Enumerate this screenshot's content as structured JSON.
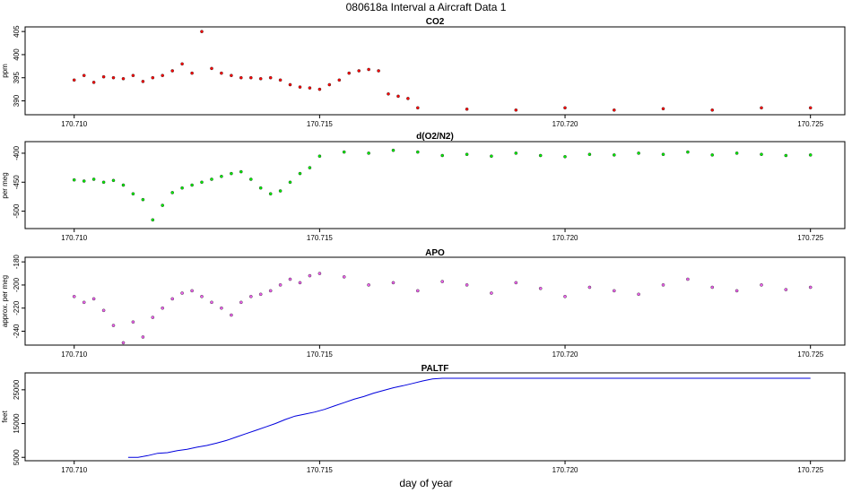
{
  "figure_title": "080618a   Interval a Aircraft Data 1",
  "x_axis_title": "day of year",
  "x_tick_labels": [
    "170.710",
    "170.715",
    "170.720",
    "170.725"
  ],
  "chart_data": [
    {
      "type": "scatter",
      "title": "CO2",
      "ylabel": "ppm",
      "color": "#ff0000",
      "xlim": [
        170.709,
        170.7257
      ],
      "ylim": [
        387,
        406
      ],
      "y_ticks": [
        390,
        395,
        400,
        405
      ],
      "y_tick_labels": [
        "390",
        "395",
        "400",
        "405"
      ],
      "points": [
        [
          170.71,
          394.5
        ],
        [
          170.7102,
          395.5
        ],
        [
          170.7104,
          394.0
        ],
        [
          170.7106,
          395.2
        ],
        [
          170.7108,
          395.0
        ],
        [
          170.711,
          394.8
        ],
        [
          170.7112,
          395.5
        ],
        [
          170.7114,
          394.2
        ],
        [
          170.7116,
          395.0
        ],
        [
          170.7118,
          395.5
        ],
        [
          170.712,
          396.5
        ],
        [
          170.7122,
          398.0
        ],
        [
          170.7124,
          396.0
        ],
        [
          170.7126,
          405.0
        ],
        [
          170.7128,
          397.0
        ],
        [
          170.713,
          396.0
        ],
        [
          170.7132,
          395.5
        ],
        [
          170.7134,
          395.0
        ],
        [
          170.7136,
          395.0
        ],
        [
          170.7138,
          394.8
        ],
        [
          170.714,
          395.0
        ],
        [
          170.7142,
          394.5
        ],
        [
          170.7144,
          393.5
        ],
        [
          170.7146,
          393.0
        ],
        [
          170.7148,
          392.8
        ],
        [
          170.715,
          392.5
        ],
        [
          170.7152,
          393.5
        ],
        [
          170.7154,
          394.5
        ],
        [
          170.7156,
          396.0
        ],
        [
          170.7158,
          396.5
        ],
        [
          170.716,
          396.8
        ],
        [
          170.7162,
          396.5
        ],
        [
          170.7164,
          391.5
        ],
        [
          170.7166,
          391.0
        ],
        [
          170.7168,
          390.5
        ],
        [
          170.717,
          388.5
        ],
        [
          170.718,
          388.2
        ],
        [
          170.719,
          388.0
        ],
        [
          170.72,
          388.5
        ],
        [
          170.721,
          388.0
        ],
        [
          170.722,
          388.3
        ],
        [
          170.723,
          388.0
        ],
        [
          170.724,
          388.5
        ],
        [
          170.725,
          388.5
        ]
      ]
    },
    {
      "type": "scatter",
      "title": "d(O2/N2)",
      "ylabel": "per meg",
      "color": "#00ee00",
      "xlim": [
        170.709,
        170.7257
      ],
      "ylim": [
        -530,
        -380
      ],
      "y_ticks": [
        -500,
        -450,
        -400
      ],
      "y_tick_labels": [
        "-500",
        "-450",
        "-400"
      ],
      "points": [
        [
          170.71,
          -446
        ],
        [
          170.7102,
          -448
        ],
        [
          170.7104,
          -445
        ],
        [
          170.7106,
          -450
        ],
        [
          170.7108,
          -447
        ],
        [
          170.711,
          -455
        ],
        [
          170.7112,
          -470
        ],
        [
          170.7114,
          -480
        ],
        [
          170.7116,
          -515
        ],
        [
          170.7118,
          -490
        ],
        [
          170.712,
          -468
        ],
        [
          170.7122,
          -460
        ],
        [
          170.7124,
          -455
        ],
        [
          170.7126,
          -450
        ],
        [
          170.7128,
          -445
        ],
        [
          170.713,
          -440
        ],
        [
          170.7132,
          -435
        ],
        [
          170.7134,
          -432
        ],
        [
          170.7136,
          -445
        ],
        [
          170.7138,
          -460
        ],
        [
          170.714,
          -470
        ],
        [
          170.7142,
          -465
        ],
        [
          170.7144,
          -450
        ],
        [
          170.7146,
          -435
        ],
        [
          170.7148,
          -425
        ],
        [
          170.715,
          -405
        ],
        [
          170.7155,
          -398
        ],
        [
          170.716,
          -400
        ],
        [
          170.7165,
          -395
        ],
        [
          170.717,
          -398
        ],
        [
          170.7175,
          -404
        ],
        [
          170.718,
          -402
        ],
        [
          170.7185,
          -405
        ],
        [
          170.719,
          -400
        ],
        [
          170.7195,
          -404
        ],
        [
          170.72,
          -406
        ],
        [
          170.7205,
          -402
        ],
        [
          170.721,
          -403
        ],
        [
          170.7215,
          -400
        ],
        [
          170.722,
          -402
        ],
        [
          170.7225,
          -398
        ],
        [
          170.723,
          -403
        ],
        [
          170.7235,
          -400
        ],
        [
          170.724,
          -402
        ],
        [
          170.7245,
          -404
        ],
        [
          170.725,
          -403
        ]
      ]
    },
    {
      "type": "scatter",
      "title": "APO",
      "ylabel": "approx. per meg",
      "color": "#ee60ee",
      "xlim": [
        170.709,
        170.7257
      ],
      "ylim": [
        -252,
        -176
      ],
      "y_ticks": [
        -240,
        -220,
        -200,
        -180
      ],
      "y_tick_labels": [
        "-240",
        "-220",
        "-200",
        "-180"
      ],
      "points": [
        [
          170.71,
          -210
        ],
        [
          170.7102,
          -215
        ],
        [
          170.7104,
          -212
        ],
        [
          170.7106,
          -222
        ],
        [
          170.7108,
          -235
        ],
        [
          170.711,
          -250
        ],
        [
          170.7112,
          -232
        ],
        [
          170.7114,
          -245
        ],
        [
          170.7116,
          -228
        ],
        [
          170.7118,
          -220
        ],
        [
          170.712,
          -212
        ],
        [
          170.7122,
          -207
        ],
        [
          170.7124,
          -205
        ],
        [
          170.7126,
          -210
        ],
        [
          170.7128,
          -215
        ],
        [
          170.713,
          -220
        ],
        [
          170.7132,
          -226
        ],
        [
          170.7134,
          -215
        ],
        [
          170.7136,
          -210
        ],
        [
          170.7138,
          -208
        ],
        [
          170.714,
          -205
        ],
        [
          170.7142,
          -200
        ],
        [
          170.7144,
          -195
        ],
        [
          170.7146,
          -198
        ],
        [
          170.7148,
          -192
        ],
        [
          170.715,
          -190
        ],
        [
          170.7155,
          -193
        ],
        [
          170.716,
          -200
        ],
        [
          170.7165,
          -198
        ],
        [
          170.717,
          -205
        ],
        [
          170.7175,
          -197
        ],
        [
          170.718,
          -200
        ],
        [
          170.7185,
          -207
        ],
        [
          170.719,
          -198
        ],
        [
          170.7195,
          -203
        ],
        [
          170.72,
          -210
        ],
        [
          170.7205,
          -202
        ],
        [
          170.721,
          -205
        ],
        [
          170.7215,
          -208
        ],
        [
          170.722,
          -200
        ],
        [
          170.7225,
          -195
        ],
        [
          170.723,
          -202
        ],
        [
          170.7235,
          -205
        ],
        [
          170.724,
          -200
        ],
        [
          170.7245,
          -204
        ],
        [
          170.725,
          -202
        ]
      ]
    },
    {
      "type": "line",
      "title": "PALTF",
      "ylabel": "feet",
      "color": "#0000dd",
      "xlim": [
        170.709,
        170.7257
      ],
      "ylim": [
        4000,
        30000
      ],
      "y_ticks": [
        5000,
        15000,
        25000
      ],
      "y_tick_labels": [
        "5000",
        "15000",
        "25000"
      ],
      "points": [
        [
          170.7111,
          5000
        ],
        [
          170.7113,
          5000
        ],
        [
          170.7115,
          5500
        ],
        [
          170.7117,
          6200
        ],
        [
          170.7119,
          6400
        ],
        [
          170.7121,
          7000
        ],
        [
          170.7123,
          7400
        ],
        [
          170.7125,
          8000
        ],
        [
          170.7127,
          8500
        ],
        [
          170.7129,
          9200
        ],
        [
          170.7131,
          10000
        ],
        [
          170.7133,
          11000
        ],
        [
          170.7135,
          12000
        ],
        [
          170.7137,
          13000
        ],
        [
          170.7139,
          14000
        ],
        [
          170.7141,
          15000
        ],
        [
          170.7143,
          16200
        ],
        [
          170.7145,
          17200
        ],
        [
          170.7147,
          17800
        ],
        [
          170.7149,
          18400
        ],
        [
          170.7151,
          19200
        ],
        [
          170.7153,
          20200
        ],
        [
          170.7155,
          21200
        ],
        [
          170.7157,
          22200
        ],
        [
          170.7159,
          23000
        ],
        [
          170.7161,
          24000
        ],
        [
          170.7163,
          24800
        ],
        [
          170.7165,
          25600
        ],
        [
          170.7167,
          26200
        ],
        [
          170.7169,
          26900
        ],
        [
          170.7171,
          27600
        ],
        [
          170.7173,
          28200
        ],
        [
          170.7175,
          28400
        ],
        [
          170.718,
          28400
        ],
        [
          170.719,
          28400
        ],
        [
          170.72,
          28400
        ],
        [
          170.721,
          28400
        ],
        [
          170.722,
          28400
        ],
        [
          170.723,
          28400
        ],
        [
          170.724,
          28400
        ],
        [
          170.725,
          28400
        ]
      ]
    }
  ]
}
